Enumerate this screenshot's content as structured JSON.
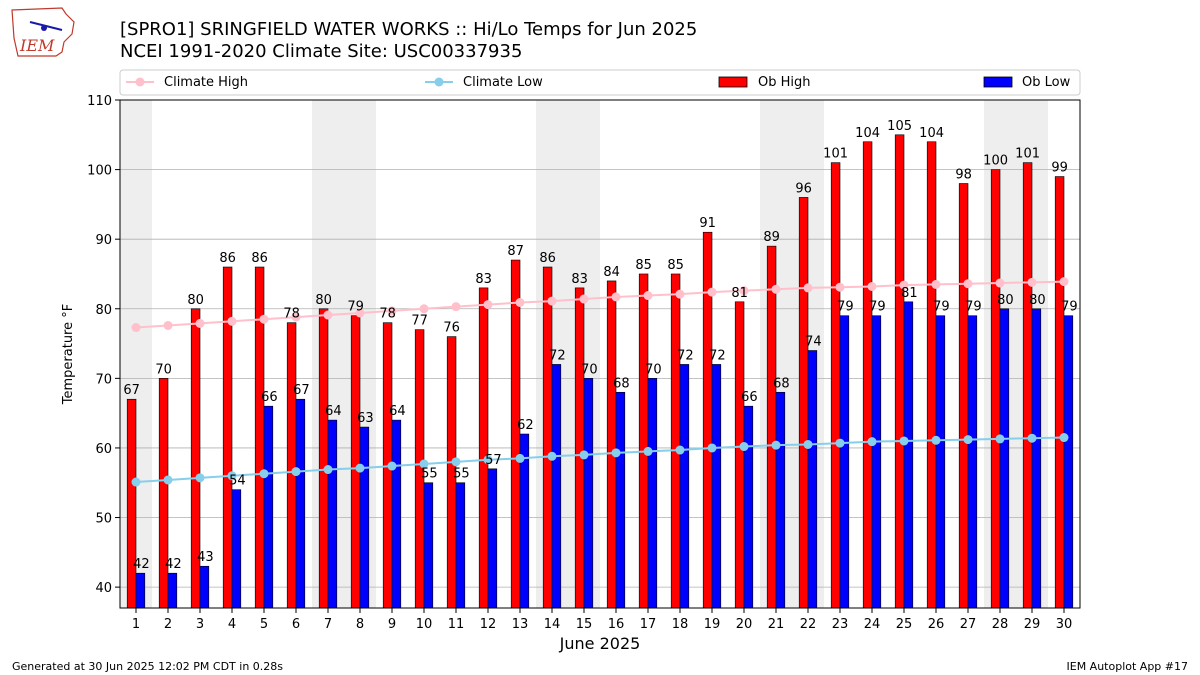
{
  "header": {
    "title_line1": "[SPRO1] SRINGFIELD WATER WORKS :: Hi/Lo Temps for Jun 2025",
    "title_line2": "NCEI 1991-2020 Climate Site: USC00337935",
    "logo_text": "IEM"
  },
  "footer": {
    "generated": "Generated at 30 Jun 2025 12:02 PM CDT in 0.28s",
    "app": "IEM Autoplot App #17"
  },
  "colors": {
    "ob_high": "#ff0000",
    "ob_low": "#0000ff",
    "climate_high": "#ffc0cb",
    "climate_low": "#87ceeb",
    "weekend_band": "#eeeeee",
    "grid": "#b0b0b0"
  },
  "chart_data": {
    "type": "bar",
    "xlabel": "June 2025",
    "ylabel": "Temperature °F",
    "ylim": [
      37,
      110
    ],
    "yticks": [
      40,
      50,
      60,
      70,
      80,
      90,
      100,
      110
    ],
    "grid": true,
    "legend_position": "top",
    "categories": [
      "1",
      "2",
      "3",
      "4",
      "5",
      "6",
      "7",
      "8",
      "9",
      "10",
      "11",
      "12",
      "13",
      "14",
      "15",
      "16",
      "17",
      "18",
      "19",
      "20",
      "21",
      "22",
      "23",
      "24",
      "25",
      "26",
      "27",
      "28",
      "29",
      "30"
    ],
    "weekend_days": [
      1,
      7,
      8,
      14,
      15,
      21,
      22,
      28,
      29
    ],
    "series": [
      {
        "name": "Ob High",
        "kind": "bar",
        "values": [
          67,
          70,
          80,
          86,
          86,
          78,
          80,
          79,
          78,
          77,
          76,
          83,
          87,
          86,
          83,
          84,
          85,
          85,
          91,
          81,
          89,
          96,
          101,
          104,
          105,
          104,
          98,
          100,
          101,
          99
        ]
      },
      {
        "name": "Ob Low",
        "kind": "bar",
        "values": [
          42,
          42,
          43,
          54,
          66,
          67,
          64,
          63,
          64,
          55,
          55,
          57,
          62,
          72,
          70,
          68,
          70,
          72,
          72,
          66,
          68,
          74,
          79,
          79,
          81,
          79,
          79,
          80,
          80,
          79
        ]
      },
      {
        "name": "Climate High",
        "kind": "line",
        "values": [
          77.3,
          77.6,
          77.9,
          78.2,
          78.5,
          78.8,
          79.1,
          79.4,
          79.7,
          80.0,
          80.3,
          80.6,
          80.9,
          81.1,
          81.4,
          81.7,
          81.9,
          82.1,
          82.4,
          82.6,
          82.8,
          83.0,
          83.1,
          83.2,
          83.4,
          83.5,
          83.6,
          83.7,
          83.8,
          83.9
        ]
      },
      {
        "name": "Climate Low",
        "kind": "line",
        "values": [
          55.1,
          55.4,
          55.7,
          56.0,
          56.3,
          56.6,
          56.9,
          57.1,
          57.4,
          57.7,
          58.0,
          58.3,
          58.5,
          58.8,
          59.0,
          59.3,
          59.5,
          59.7,
          60.0,
          60.2,
          60.4,
          60.5,
          60.7,
          60.9,
          61.0,
          61.1,
          61.2,
          61.3,
          61.4,
          61.5
        ]
      }
    ]
  }
}
